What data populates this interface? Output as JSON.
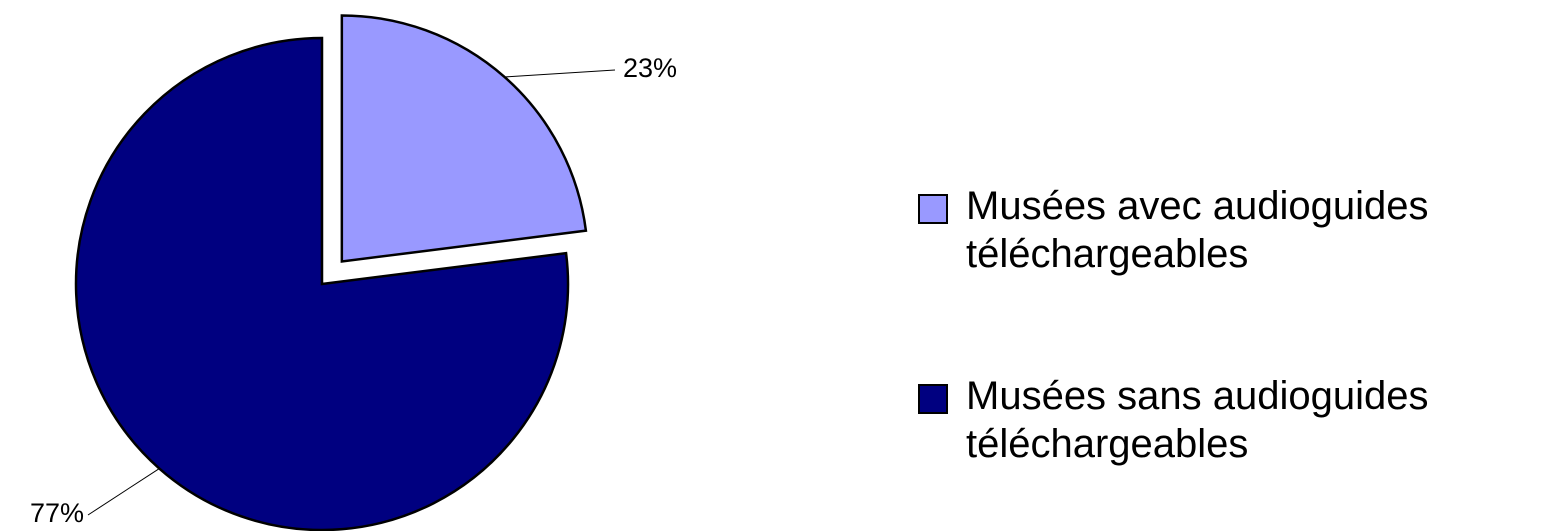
{
  "chart_data": {
    "type": "pie",
    "categories": [
      "Musées avec audioguides téléchargeables",
      "Musées sans audioguides téléchargeables"
    ],
    "values": [
      23,
      77
    ],
    "value_labels": [
      "23%",
      "77%"
    ],
    "colors": [
      "#9999ff",
      "#000080"
    ],
    "legend": "right"
  }
}
